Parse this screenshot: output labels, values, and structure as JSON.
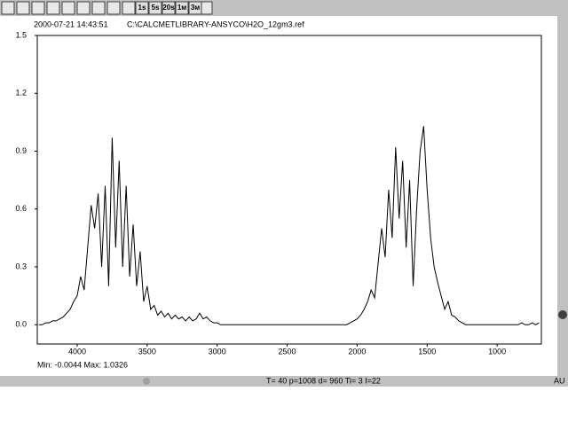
{
  "toolbar": {
    "buttons": [
      "1s",
      "5s",
      "20s",
      "1м",
      "3м"
    ]
  },
  "header": {
    "timestamp": "2000-07-21 14:43:51",
    "file": "C:\\CALCMETLIBRARY-ANSYCO\\H2O_12gm3.ref"
  },
  "stats": "Min: -0.0044  Max: 1.0326",
  "status": "T= 40  p=1008  d= 960  Ti= 3  I=22",
  "unit": "AU",
  "chart_data": {
    "type": "line",
    "x": [
      4275,
      4250,
      4225,
      4200,
      4175,
      4150,
      4125,
      4100,
      4075,
      4050,
      4025,
      4000,
      3975,
      3950,
      3925,
      3900,
      3875,
      3850,
      3825,
      3800,
      3775,
      3750,
      3725,
      3700,
      3675,
      3650,
      3625,
      3600,
      3575,
      3550,
      3525,
      3500,
      3475,
      3450,
      3425,
      3400,
      3375,
      3350,
      3325,
      3300,
      3275,
      3250,
      3225,
      3200,
      3175,
      3150,
      3125,
      3100,
      3075,
      3050,
      3025,
      3000,
      2975,
      2950,
      2925,
      2900,
      2875,
      2850,
      2825,
      2800,
      2775,
      2750,
      2725,
      2700,
      2675,
      2650,
      2625,
      2600,
      2575,
      2550,
      2525,
      2500,
      2475,
      2450,
      2425,
      2400,
      2375,
      2350,
      2325,
      2300,
      2275,
      2250,
      2225,
      2200,
      2175,
      2150,
      2125,
      2100,
      2075,
      2050,
      2025,
      2000,
      1975,
      1950,
      1925,
      1900,
      1875,
      1850,
      1825,
      1800,
      1775,
      1750,
      1725,
      1700,
      1675,
      1650,
      1625,
      1600,
      1575,
      1550,
      1525,
      1500,
      1475,
      1450,
      1425,
      1400,
      1375,
      1350,
      1325,
      1300,
      1275,
      1250,
      1225,
      1200,
      1175,
      1150,
      1125,
      1100,
      1075,
      1050,
      1025,
      1000,
      975,
      950,
      925,
      900,
      875,
      850,
      825,
      800,
      775,
      750,
      725,
      700
    ],
    "series": [
      {
        "color": "#000000",
        "values": [
          0.0,
          0.0,
          0.01,
          0.01,
          0.02,
          0.02,
          0.03,
          0.04,
          0.06,
          0.08,
          0.12,
          0.15,
          0.25,
          0.18,
          0.4,
          0.62,
          0.5,
          0.68,
          0.3,
          0.72,
          0.2,
          0.97,
          0.4,
          0.85,
          0.3,
          0.72,
          0.25,
          0.52,
          0.2,
          0.38,
          0.12,
          0.2,
          0.08,
          0.1,
          0.05,
          0.07,
          0.04,
          0.06,
          0.03,
          0.05,
          0.03,
          0.04,
          0.02,
          0.04,
          0.02,
          0.03,
          0.06,
          0.03,
          0.04,
          0.02,
          0.01,
          0.01,
          0.0,
          0.0,
          0.0,
          0.0,
          0.0,
          0.0,
          0.0,
          0.0,
          0.0,
          0.0,
          0.0,
          0.0,
          0.0,
          0.0,
          0.0,
          0.0,
          0.0,
          0.0,
          0.0,
          0.0,
          0.0,
          0.0,
          0.0,
          0.0,
          0.0,
          0.0,
          0.0,
          0.0,
          0.0,
          0.0,
          0.0,
          0.0,
          0.0,
          0.0,
          0.0,
          0.0,
          0.0,
          0.01,
          0.02,
          0.03,
          0.05,
          0.08,
          0.12,
          0.18,
          0.14,
          0.32,
          0.5,
          0.35,
          0.7,
          0.45,
          0.92,
          0.55,
          0.85,
          0.4,
          0.75,
          0.2,
          0.6,
          0.9,
          1.03,
          0.7,
          0.45,
          0.3,
          0.22,
          0.15,
          0.08,
          0.12,
          0.05,
          0.04,
          0.02,
          0.01,
          0.0,
          0.0,
          0.0,
          0.0,
          0.0,
          0.0,
          0.0,
          0.0,
          0.0,
          0.0,
          0.0,
          0.0,
          0.0,
          0.0,
          0.0,
          0.0,
          0.01,
          0.0,
          0.0,
          0.01,
          0.0,
          0.01
        ]
      }
    ],
    "xlim": [
      4285,
      684
    ],
    "ylim": [
      -0.1,
      1.5
    ],
    "xticks": [
      4000,
      3500,
      3000,
      2500,
      2000,
      1500,
      1000
    ],
    "yticks": [
      {
        "value": 0,
        "label": "0.0"
      },
      0.3,
      0.6,
      0.9,
      1.2,
      1.5
    ]
  }
}
